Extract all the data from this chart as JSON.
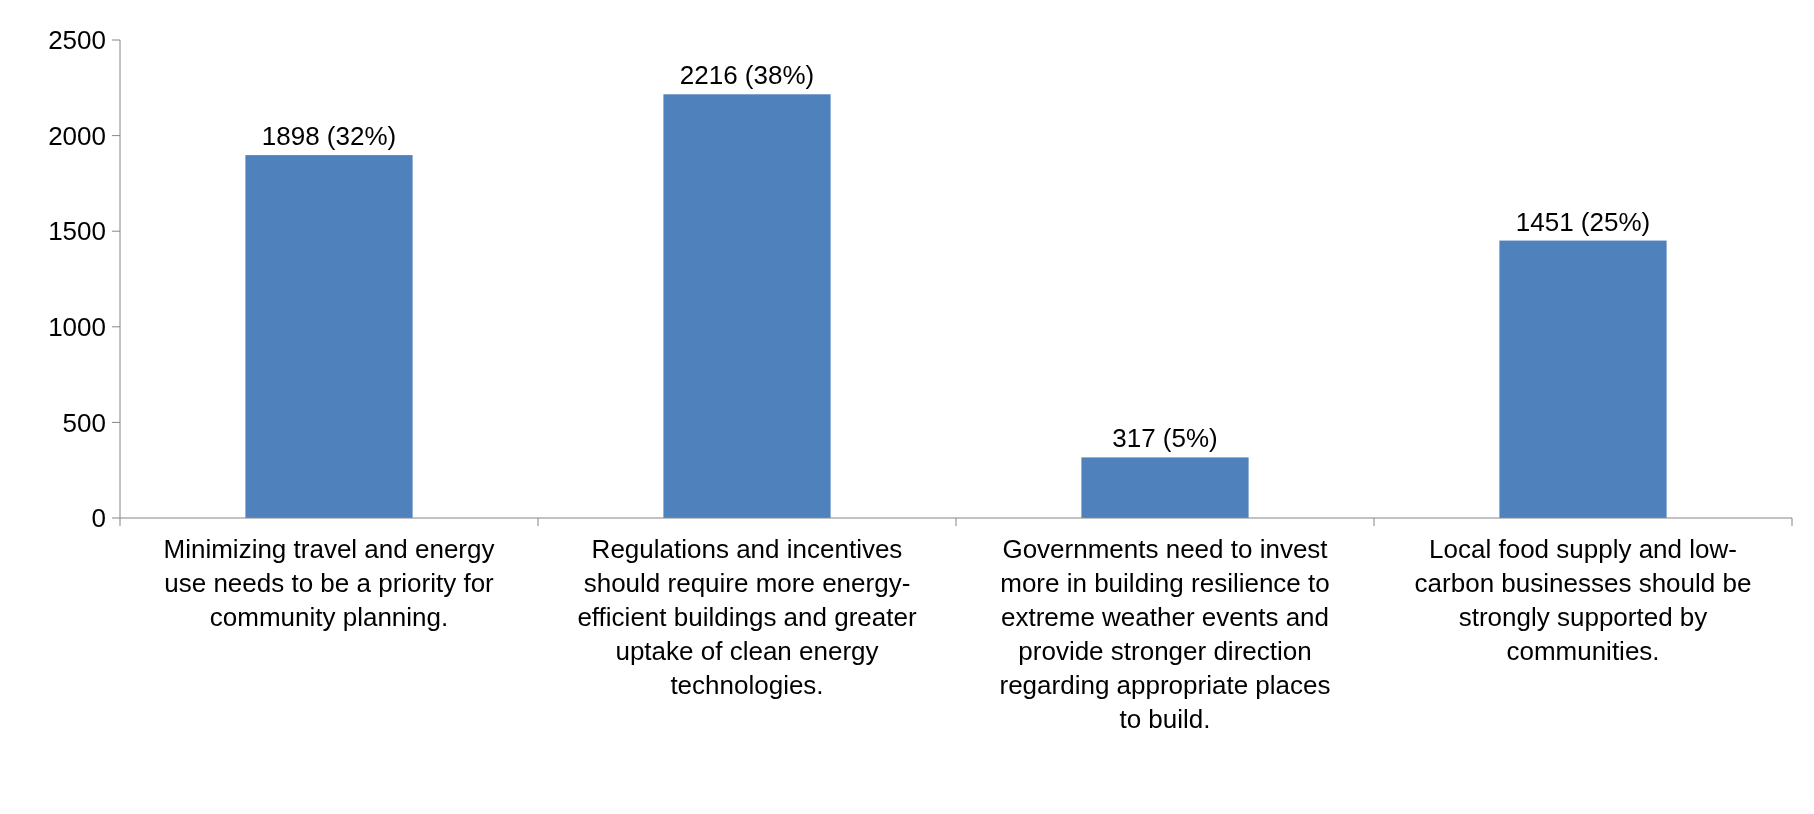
{
  "chart_data": {
    "type": "bar",
    "categories": [
      "Minimizing travel and energy use needs to be a priority for community planning.",
      "Regulations and incentives should require more energy-efficient buildings and greater uptake of clean energy technologies.",
      "Governments need to invest more in building resilience to extreme weather events and provide stronger direction regarding appropriate places to build.",
      "Local food supply and low-carbon businesses should be strongly supported by communities."
    ],
    "values": [
      1898,
      2216,
      317,
      1451
    ],
    "value_labels": [
      "1898 (32%)",
      "2216 (38%)",
      "317 (5%)",
      "1451 (25%)"
    ],
    "color": "#4f81bd",
    "ylim": [
      0,
      2500
    ],
    "yticks": [
      0,
      500,
      1000,
      1500,
      2000,
      2500
    ],
    "grid": false
  }
}
